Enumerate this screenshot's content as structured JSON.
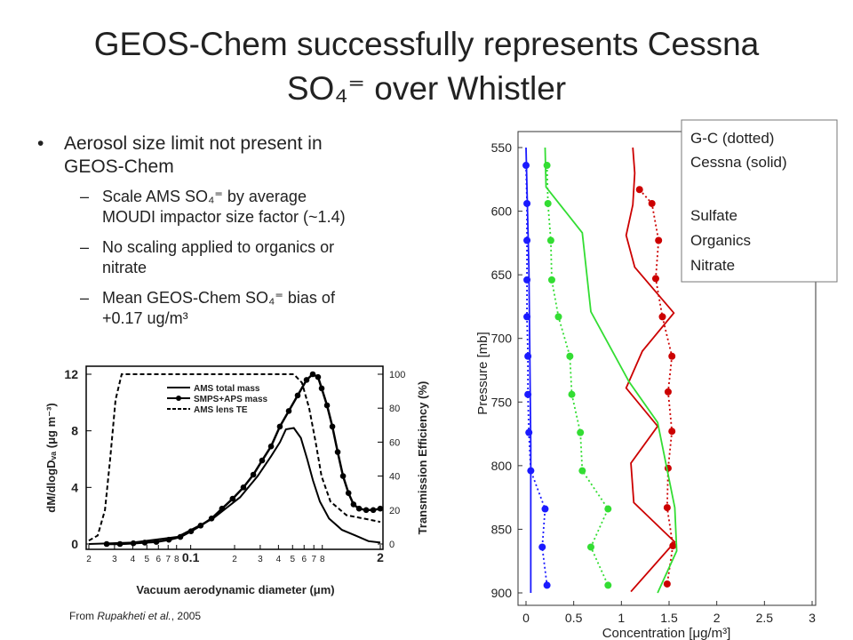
{
  "title": [
    "GEOS-Chem successfully represents Cessna",
    "SO₄⁼ over Whistler"
  ],
  "bullets": [
    {
      "lines": [
        "Aerosol size limit not present in",
        "GEOS-Chem"
      ],
      "sub": [
        {
          "lines": [
            "Scale AMS SO₄⁼ by average",
            "MOUDI impactor size factor (~1.4)"
          ]
        },
        {
          "lines": [
            "No scaling applied to organics or",
            "nitrate"
          ]
        },
        {
          "lines": [
            "Mean GEOS-Chem SO₄⁼ bias of",
            "+0.17 ug/m³"
          ]
        }
      ]
    }
  ],
  "caption": [
    "From ",
    "Rupakheti et al.",
    ", 2005"
  ],
  "chart_data": [
    {
      "type": "line",
      "log_x": true,
      "xlabel": "Vacuum aerodynamic diameter (μm)",
      "ylabel": "dM/dlogDᵥₐ (μg m⁻³)",
      "y2label": "Transmission Efficiency (%)",
      "xlim": [
        0.02,
        2
      ],
      "xticks": [
        {
          "value": 0.02,
          "label": "2"
        },
        {
          "value": 0.03,
          "label": "3"
        },
        {
          "value": 0.04,
          "label": "4"
        },
        {
          "value": 0.05,
          "label": "5"
        },
        {
          "value": 0.06,
          "label": "6"
        },
        {
          "value": 0.07,
          "label": "7"
        },
        {
          "value": 0.08,
          "label": "8"
        },
        0.1,
        {
          "value": 0.2,
          "label": "2"
        },
        {
          "value": 0.3,
          "label": "3"
        },
        {
          "value": 0.4,
          "label": "4"
        },
        {
          "value": 0.5,
          "label": "5"
        },
        {
          "value": 0.6,
          "label": "6"
        },
        {
          "value": 0.7,
          "label": "7"
        },
        {
          "value": 0.8,
          "label": "8"
        },
        2
      ],
      "ylim": [
        0,
        12
      ],
      "yticks": [
        0,
        4,
        8,
        12
      ],
      "y2lim": [
        0,
        100
      ],
      "y2ticks": [
        0,
        20,
        40,
        60,
        80,
        100
      ],
      "legend": "upper left",
      "series": [
        {
          "name": "AMS total mass",
          "color": "#000000",
          "style": "solid",
          "markers": false,
          "x": [
            0.02,
            0.04,
            0.081,
            0.142,
            0.218,
            0.288,
            0.356,
            0.41,
            0.45,
            0.51,
            0.57,
            0.63,
            0.69,
            0.77,
            0.89,
            1.09,
            1.35,
            1.66,
            2.0
          ],
          "values": [
            0,
            0.1,
            0.5,
            1.8,
            3.3,
            4.8,
            6.2,
            7.2,
            8.1,
            8.2,
            7.5,
            6,
            4.5,
            3,
            1.8,
            1,
            0.6,
            0.2,
            0.1
          ]
        },
        {
          "name": "SMPS+APS mass",
          "color": "#000000",
          "style": "solid",
          "markers": true,
          "x": [
            0.0265,
            0.0327,
            0.0404,
            0.0484,
            0.0581,
            0.0708,
            0.0849,
            0.1005,
            0.117,
            0.139,
            0.164,
            0.194,
            0.23,
            0.269,
            0.309,
            0.356,
            0.409,
            0.471,
            0.542,
            0.624,
            0.688,
            0.748,
            0.792,
            0.862,
            0.938,
            1.02,
            1.11,
            1.21,
            1.31,
            1.43,
            1.6,
            1.79,
            2.0
          ],
          "values": [
            0,
            0,
            0.05,
            0.1,
            0.15,
            0.3,
            0.5,
            0.9,
            1.3,
            1.8,
            2.5,
            3.2,
            4.0,
            4.9,
            5.9,
            6.9,
            8.3,
            9.4,
            10.5,
            11.6,
            12.0,
            11.8,
            11.0,
            9.8,
            8.3,
            6.5,
            4.8,
            3.6,
            2.8,
            2.5,
            2.4,
            2.4,
            2.5
          ]
        },
        {
          "name": "AMS lens TE",
          "color": "#000000",
          "style": "dashed",
          "markers": false,
          "axis": "y2",
          "x": [
            0.02,
            0.023,
            0.0258,
            0.028,
            0.0305,
            0.0336,
            0.51,
            0.58,
            0.65,
            0.72,
            0.79,
            0.91,
            1.17,
            1.54,
            2.0
          ],
          "values": [
            2,
            5,
            20,
            50,
            85,
            100,
            100,
            95,
            80,
            60,
            40,
            25,
            17,
            15,
            13
          ]
        }
      ]
    },
    {
      "type": "profile",
      "xlabel": "Concentration [μg/m³]",
      "ylabel": "Pressure [mb]",
      "xlim": [
        0,
        3
      ],
      "xticks": [
        0,
        0.5,
        1,
        1.5,
        2,
        2.5,
        3
      ],
      "ylim": [
        550,
        900
      ],
      "yticks": [
        550,
        600,
        650,
        700,
        750,
        800,
        850,
        900
      ],
      "y_inverted": true,
      "legend": "upper right",
      "line_styles": [
        "G-C (dotted)",
        "Cessna (solid)"
      ],
      "series": [
        {
          "name": "Sulfate",
          "color": "#cc0000",
          "gc_pressure": [
            583,
            594,
            623,
            653,
            683,
            714,
            742,
            773,
            802,
            833,
            863,
            893
          ],
          "gc_values": [
            1.19,
            1.32,
            1.39,
            1.36,
            1.43,
            1.53,
            1.49,
            1.53,
            1.49,
            1.48,
            1.54,
            1.48
          ],
          "cessna_pressure": [
            550,
            570,
            595,
            619,
            644,
            680,
            710,
            739,
            769,
            798,
            829,
            860,
            899
          ],
          "cessna_values": [
            1.12,
            1.14,
            1.12,
            1.05,
            1.14,
            1.55,
            1.22,
            1.05,
            1.38,
            1.1,
            1.13,
            1.56,
            1.1
          ]
        },
        {
          "name": "Organics",
          "color": "#33dd33",
          "gc_pressure": [
            564,
            594,
            623,
            654,
            683,
            714,
            744,
            774,
            804,
            834,
            864,
            894
          ],
          "gc_values": [
            0.22,
            0.23,
            0.26,
            0.27,
            0.34,
            0.46,
            0.48,
            0.57,
            0.59,
            0.86,
            0.68,
            0.86
          ],
          "cessna_pressure": [
            550,
            581,
            617,
            679,
            734,
            766,
            833,
            867,
            900
          ],
          "cessna_values": [
            0.2,
            0.21,
            0.59,
            0.68,
            1.08,
            1.38,
            1.56,
            1.58,
            1.38
          ]
        },
        {
          "name": "Nitrate",
          "color": "#1a1aff",
          "gc_pressure": [
            564,
            594,
            623,
            654,
            683,
            714,
            744,
            774,
            804,
            834,
            864,
            894
          ],
          "gc_values": [
            0.0,
            0.01,
            0.01,
            0.01,
            0.01,
            0.02,
            0.02,
            0.03,
            0.05,
            0.2,
            0.17,
            0.22
          ],
          "cessna_pressure": [
            550,
            644,
            784,
            900
          ],
          "cessna_values": [
            0.0,
            0.03,
            0.05,
            0.05
          ]
        }
      ]
    }
  ]
}
